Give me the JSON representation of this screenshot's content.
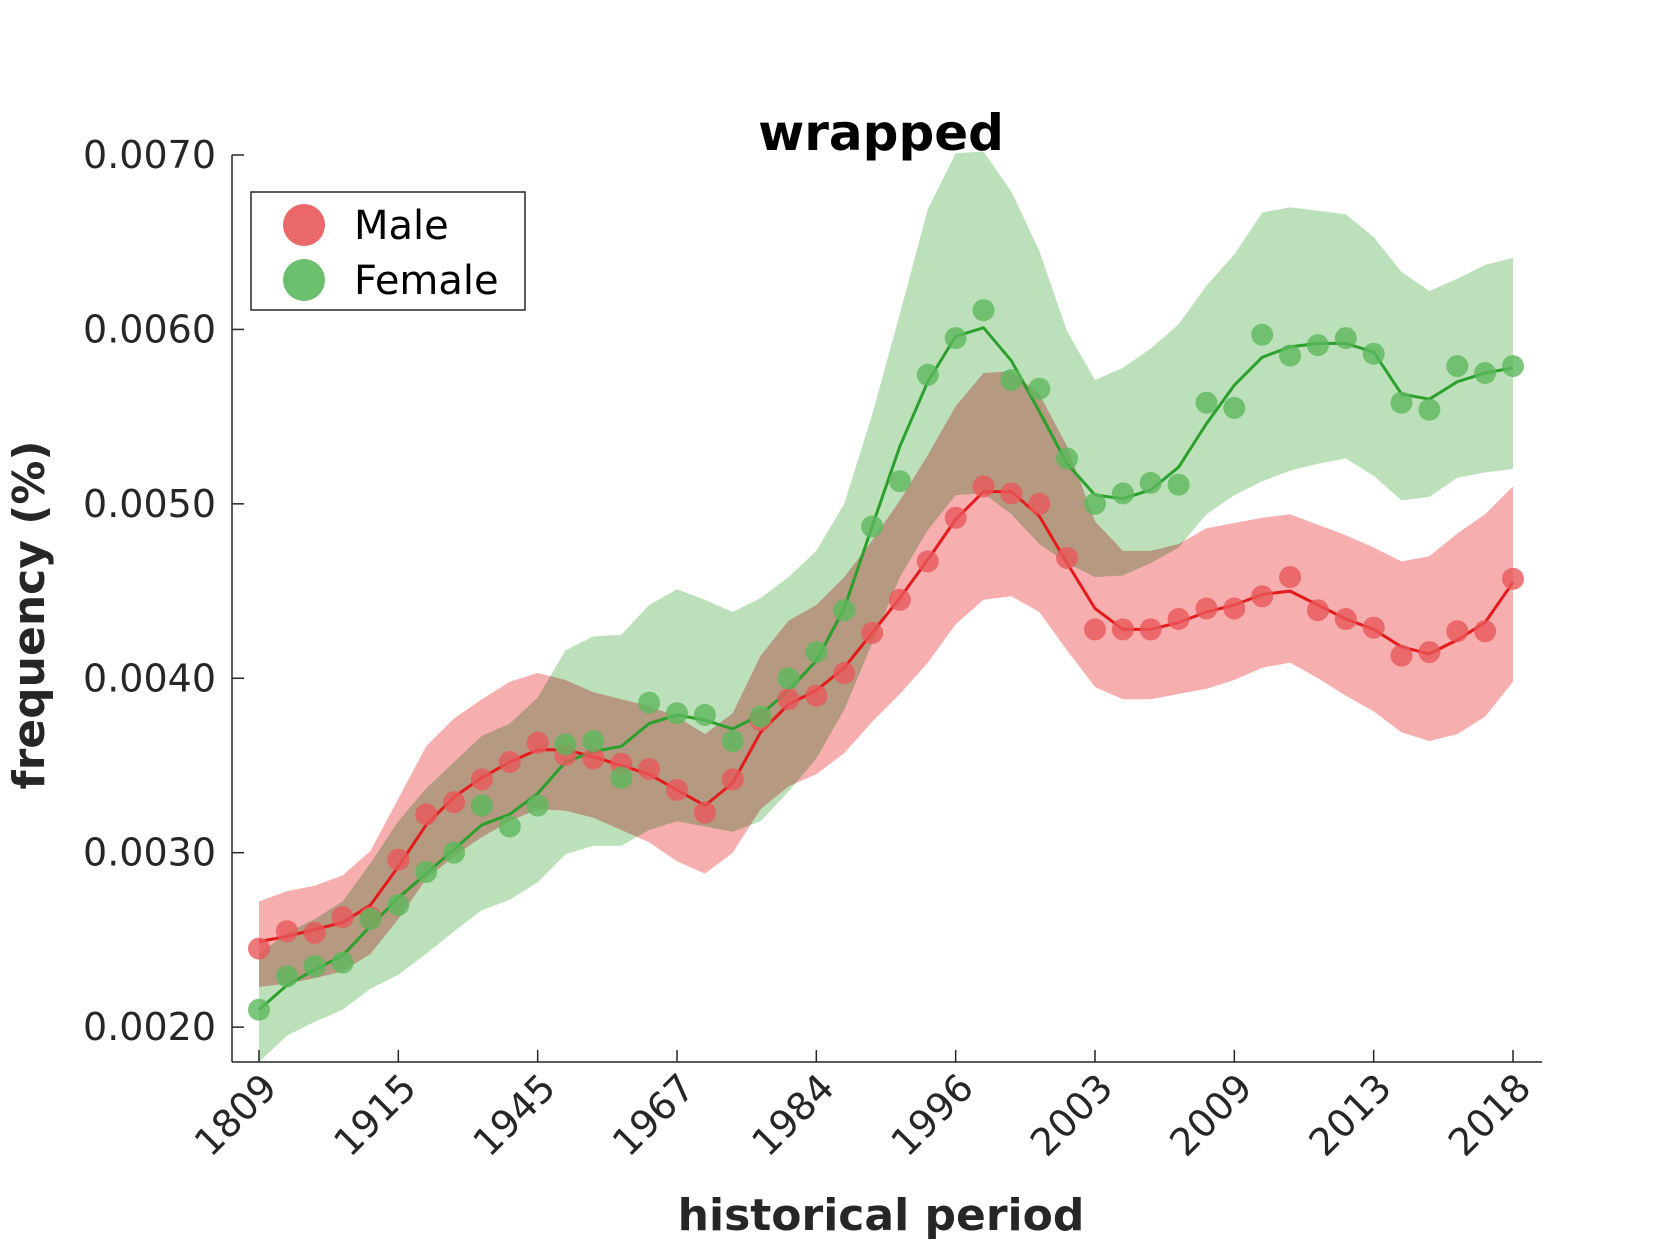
{
  "chart_data": {
    "type": "line",
    "title": "wrapped",
    "xlabel": "historical period",
    "ylabel": "frequency (%)",
    "ylim": [
      0.0018,
      0.007
    ],
    "yticks": [
      "0.0020",
      "0.0030",
      "0.0040",
      "0.0050",
      "0.0060",
      "0.0070"
    ],
    "ytick_values": [
      0.002,
      0.003,
      0.004,
      0.005,
      0.006,
      0.007
    ],
    "xtick_labels": [
      "1809",
      "1915",
      "1945",
      "1967",
      "1984",
      "1996",
      "2003",
      "2009",
      "2013",
      "2018"
    ],
    "xtick_indices": [
      0,
      5,
      10,
      15,
      20,
      25,
      30,
      35,
      40,
      45
    ],
    "legend": {
      "position": "top-left"
    },
    "grid": false,
    "series": [
      {
        "name": "Male",
        "color": "#e41a1c",
        "marker_color": "#e8585a",
        "band_color": "#f4a0a1",
        "points": [
          0.00245,
          0.00255,
          0.00254,
          0.00263,
          0.00263,
          0.00296,
          0.00322,
          0.00329,
          0.00342,
          0.00352,
          0.00363,
          0.00356,
          0.00354,
          0.00351,
          0.00348,
          0.00336,
          0.00323,
          0.00342,
          0.00376,
          0.00388,
          0.0039,
          0.00403,
          0.00426,
          0.00445,
          0.00467,
          0.00492,
          0.0051,
          0.00506,
          0.005,
          0.00469,
          0.00428,
          0.00428,
          0.00428,
          0.00434,
          0.0044,
          0.0044,
          0.00447,
          0.00458,
          0.00439,
          0.00434,
          0.00429,
          0.00413,
          0.00415,
          0.00427,
          0.00427,
          0.00457
        ],
        "line": [
          0.00249,
          0.00252,
          0.00256,
          0.0026,
          0.0027,
          0.00292,
          0.00316,
          0.00332,
          0.00343,
          0.00352,
          0.00359,
          0.00359,
          0.00355,
          0.0035,
          0.00345,
          0.00336,
          0.00327,
          0.0034,
          0.00369,
          0.00385,
          0.00393,
          0.00406,
          0.00426,
          0.00446,
          0.00468,
          0.00491,
          0.00507,
          0.00507,
          0.00493,
          0.00466,
          0.0044,
          0.00428,
          0.00428,
          0.00432,
          0.00438,
          0.00442,
          0.00448,
          0.0045,
          0.00442,
          0.00434,
          0.00428,
          0.00418,
          0.00414,
          0.00422,
          0.00432,
          0.00455
        ],
        "lower": [
          0.00223,
          0.00225,
          0.00228,
          0.00232,
          0.00242,
          0.00262,
          0.00285,
          0.00298,
          0.00309,
          0.00318,
          0.00325,
          0.00324,
          0.0032,
          0.00313,
          0.00306,
          0.00295,
          0.00288,
          0.003,
          0.00325,
          0.00338,
          0.00345,
          0.00357,
          0.00375,
          0.00391,
          0.00409,
          0.00431,
          0.00445,
          0.00447,
          0.00438,
          0.00416,
          0.00395,
          0.00388,
          0.00388,
          0.00391,
          0.00394,
          0.00399,
          0.00406,
          0.00409,
          0.004,
          0.0039,
          0.00381,
          0.00369,
          0.00364,
          0.00368,
          0.00378,
          0.00398
        ],
        "upper": [
          0.00272,
          0.00278,
          0.00281,
          0.00287,
          0.00301,
          0.00331,
          0.00361,
          0.00377,
          0.00388,
          0.00398,
          0.00403,
          0.00399,
          0.00392,
          0.00388,
          0.00384,
          0.00378,
          0.00368,
          0.0038,
          0.00413,
          0.00433,
          0.00442,
          0.00458,
          0.00479,
          0.00502,
          0.00528,
          0.00556,
          0.00575,
          0.00576,
          0.00563,
          0.00533,
          0.0049,
          0.00473,
          0.00473,
          0.00477,
          0.00486,
          0.00489,
          0.00492,
          0.00494,
          0.00488,
          0.00482,
          0.00475,
          0.00467,
          0.0047,
          0.00483,
          0.00494,
          0.0051
        ]
      },
      {
        "name": "Female",
        "color": "#2ca02c",
        "marker_color": "#5cb85c",
        "band_color": "#b0dcae",
        "points": [
          0.0021,
          0.00229,
          0.00235,
          0.00237,
          0.00262,
          0.0027,
          0.00289,
          0.003,
          0.00327,
          0.00315,
          0.00327,
          0.00362,
          0.00364,
          0.00343,
          0.00386,
          0.0038,
          0.00379,
          0.00364,
          0.00378,
          0.004,
          0.00415,
          0.00439,
          0.00487,
          0.00513,
          0.00574,
          0.00595,
          0.00611,
          0.00571,
          0.00566,
          0.00526,
          0.005,
          0.00506,
          0.00512,
          0.00511,
          0.00558,
          0.00555,
          0.00597,
          0.00585,
          0.00591,
          0.00595,
          0.00586,
          0.00558,
          0.00554,
          0.00579,
          0.00575,
          0.00579
        ],
        "line": [
          0.0021,
          0.00224,
          0.00233,
          0.00241,
          0.00258,
          0.00274,
          0.00288,
          0.00302,
          0.00316,
          0.00322,
          0.00334,
          0.00352,
          0.00358,
          0.00361,
          0.00374,
          0.00379,
          0.00376,
          0.00371,
          0.00379,
          0.00393,
          0.0041,
          0.0044,
          0.00487,
          0.00533,
          0.0057,
          0.00596,
          0.00601,
          0.00582,
          0.00553,
          0.00523,
          0.00505,
          0.00503,
          0.00508,
          0.00521,
          0.00546,
          0.00568,
          0.00584,
          0.0059,
          0.00592,
          0.00592,
          0.00587,
          0.00563,
          0.0056,
          0.0057,
          0.00575,
          0.00578
        ],
        "lower": [
          0.0018,
          0.00195,
          0.00203,
          0.0021,
          0.00222,
          0.0023,
          0.00242,
          0.00255,
          0.00267,
          0.00273,
          0.00283,
          0.00299,
          0.00304,
          0.00304,
          0.00313,
          0.00318,
          0.00315,
          0.00312,
          0.00318,
          0.00335,
          0.00354,
          0.00382,
          0.0042,
          0.00458,
          0.00485,
          0.00505,
          0.00506,
          0.00494,
          0.00477,
          0.00466,
          0.00458,
          0.00459,
          0.00466,
          0.00475,
          0.00494,
          0.00505,
          0.00513,
          0.00519,
          0.00523,
          0.00526,
          0.00516,
          0.00502,
          0.00504,
          0.00515,
          0.00518,
          0.0052
        ],
        "upper": [
          0.00242,
          0.00254,
          0.00262,
          0.00272,
          0.00294,
          0.00318,
          0.00337,
          0.00352,
          0.00367,
          0.00374,
          0.00389,
          0.00416,
          0.00424,
          0.00425,
          0.00442,
          0.00451,
          0.00445,
          0.00438,
          0.00446,
          0.00458,
          0.00473,
          0.005,
          0.00551,
          0.00609,
          0.00669,
          0.00701,
          0.00702,
          0.00679,
          0.00645,
          0.00599,
          0.00571,
          0.00578,
          0.00589,
          0.00603,
          0.00625,
          0.00643,
          0.00667,
          0.0067,
          0.00668,
          0.00666,
          0.00653,
          0.00633,
          0.00622,
          0.00629,
          0.00637,
          0.00641
        ]
      }
    ]
  }
}
